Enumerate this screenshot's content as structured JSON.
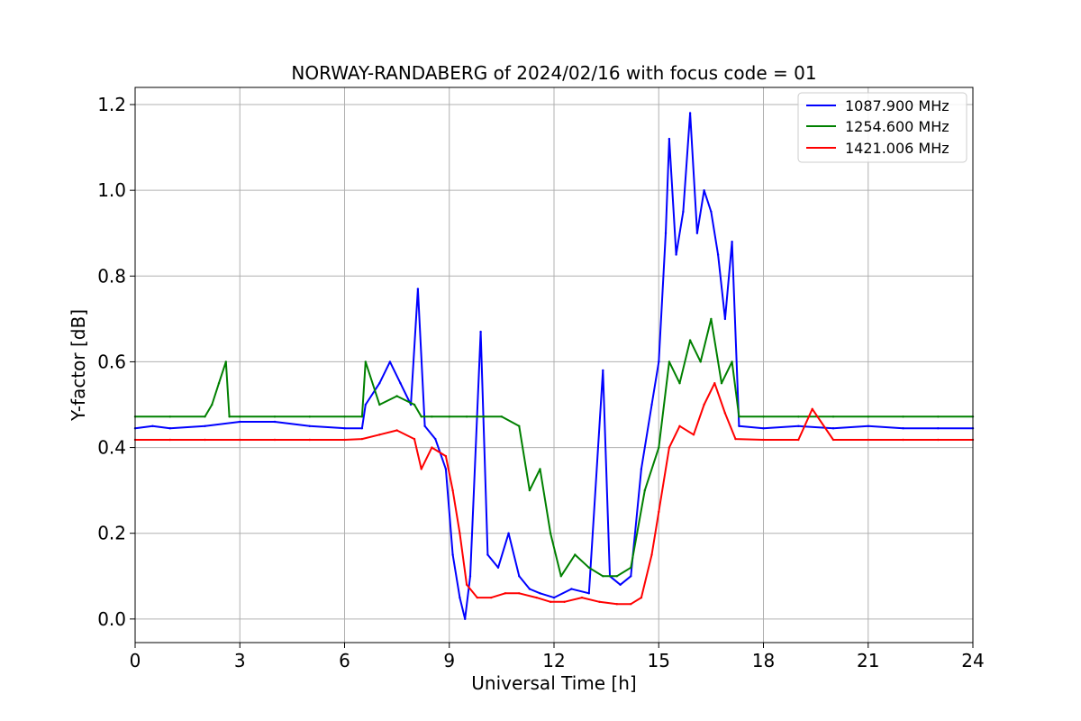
{
  "chart_data": {
    "type": "line",
    "title": "NORWAY-RANDABERG of 2024/02/16 with focus code = 01",
    "xlabel": "Universal Time [h]",
    "ylabel": "Y-factor [dB]",
    "xlim": [
      0,
      24
    ],
    "ylim": [
      -0.055,
      1.24
    ],
    "xticks": [
      0,
      3,
      6,
      9,
      12,
      15,
      18,
      21,
      24
    ],
    "yticks": [
      0.0,
      0.2,
      0.4,
      0.6,
      0.8,
      1.0,
      1.2
    ],
    "ytick_labels": [
      "0.0",
      "0.2",
      "0.4",
      "0.6",
      "0.8",
      "1.0",
      "1.2"
    ],
    "grid": true,
    "legend_position": "top-right",
    "series": [
      {
        "name": "1087.900 MHz",
        "color": "#0000ff",
        "x": [
          0,
          0.5,
          1,
          2,
          3,
          4,
          5,
          6,
          6.5,
          6.6,
          7.0,
          7.3,
          7.6,
          7.9,
          8.1,
          8.3,
          8.6,
          8.9,
          9.1,
          9.3,
          9.45,
          9.6,
          9.9,
          10.1,
          10.4,
          10.7,
          11.0,
          11.3,
          11.6,
          12.0,
          12.5,
          13.0,
          13.4,
          13.6,
          13.9,
          14.2,
          14.5,
          14.8,
          15.0,
          15.2,
          15.3,
          15.5,
          15.7,
          15.9,
          16.1,
          16.3,
          16.5,
          16.7,
          16.9,
          17.1,
          17.3,
          18,
          19,
          20,
          21,
          22,
          23,
          24
        ],
        "y": [
          0.445,
          0.45,
          0.445,
          0.45,
          0.46,
          0.46,
          0.45,
          0.445,
          0.445,
          0.5,
          0.55,
          0.6,
          0.55,
          0.5,
          0.77,
          0.45,
          0.42,
          0.35,
          0.15,
          0.05,
          0.0,
          0.1,
          0.67,
          0.15,
          0.12,
          0.2,
          0.1,
          0.07,
          0.06,
          0.05,
          0.07,
          0.06,
          0.58,
          0.1,
          0.08,
          0.1,
          0.35,
          0.5,
          0.6,
          0.9,
          1.12,
          0.85,
          0.95,
          1.18,
          0.9,
          1.0,
          0.95,
          0.85,
          0.7,
          0.88,
          0.45,
          0.445,
          0.45,
          0.445,
          0.45,
          0.445,
          0.445,
          0.445
        ]
      },
      {
        "name": "1254.600 MHz",
        "color": "#008000",
        "x": [
          0,
          1,
          2,
          2.2,
          2.4,
          2.6,
          2.7,
          3,
          4,
          5,
          6,
          6.5,
          6.6,
          7.0,
          7.5,
          8.0,
          8.2,
          8.5,
          9.0,
          9.5,
          10.0,
          10.5,
          11.0,
          11.3,
          11.6,
          11.9,
          12.2,
          12.6,
          13.0,
          13.4,
          13.8,
          14.2,
          14.6,
          15.0,
          15.3,
          15.6,
          15.9,
          16.2,
          16.5,
          16.8,
          17.1,
          17.3,
          18,
          19,
          20,
          21,
          22,
          23,
          24
        ],
        "y": [
          0.472,
          0.472,
          0.472,
          0.5,
          0.55,
          0.6,
          0.472,
          0.472,
          0.472,
          0.472,
          0.472,
          0.472,
          0.6,
          0.5,
          0.52,
          0.5,
          0.472,
          0.472,
          0.472,
          0.472,
          0.472,
          0.472,
          0.45,
          0.3,
          0.35,
          0.2,
          0.1,
          0.15,
          0.12,
          0.1,
          0.1,
          0.12,
          0.3,
          0.4,
          0.6,
          0.55,
          0.65,
          0.6,
          0.7,
          0.55,
          0.6,
          0.472,
          0.472,
          0.472,
          0.472,
          0.472,
          0.472,
          0.472,
          0.472
        ]
      },
      {
        "name": "1421.006 MHz",
        "color": "#ff0000",
        "x": [
          0,
          1,
          2,
          3,
          4,
          5,
          6,
          6.5,
          7.0,
          7.5,
          8.0,
          8.2,
          8.5,
          8.9,
          9.1,
          9.3,
          9.5,
          9.8,
          10.2,
          10.6,
          11.0,
          11.5,
          11.9,
          12.3,
          12.8,
          13.3,
          13.8,
          14.2,
          14.5,
          14.8,
          15.0,
          15.3,
          15.6,
          16.0,
          16.3,
          16.6,
          16.9,
          17.2,
          18,
          19,
          19.4,
          20,
          21,
          22,
          23,
          24
        ],
        "y": [
          0.418,
          0.418,
          0.418,
          0.418,
          0.418,
          0.418,
          0.418,
          0.42,
          0.43,
          0.44,
          0.42,
          0.35,
          0.4,
          0.38,
          0.3,
          0.2,
          0.08,
          0.05,
          0.05,
          0.06,
          0.06,
          0.05,
          0.04,
          0.04,
          0.05,
          0.04,
          0.035,
          0.035,
          0.05,
          0.15,
          0.25,
          0.4,
          0.45,
          0.43,
          0.5,
          0.55,
          0.48,
          0.42,
          0.418,
          0.418,
          0.49,
          0.418,
          0.418,
          0.418,
          0.418,
          0.418
        ]
      }
    ]
  }
}
